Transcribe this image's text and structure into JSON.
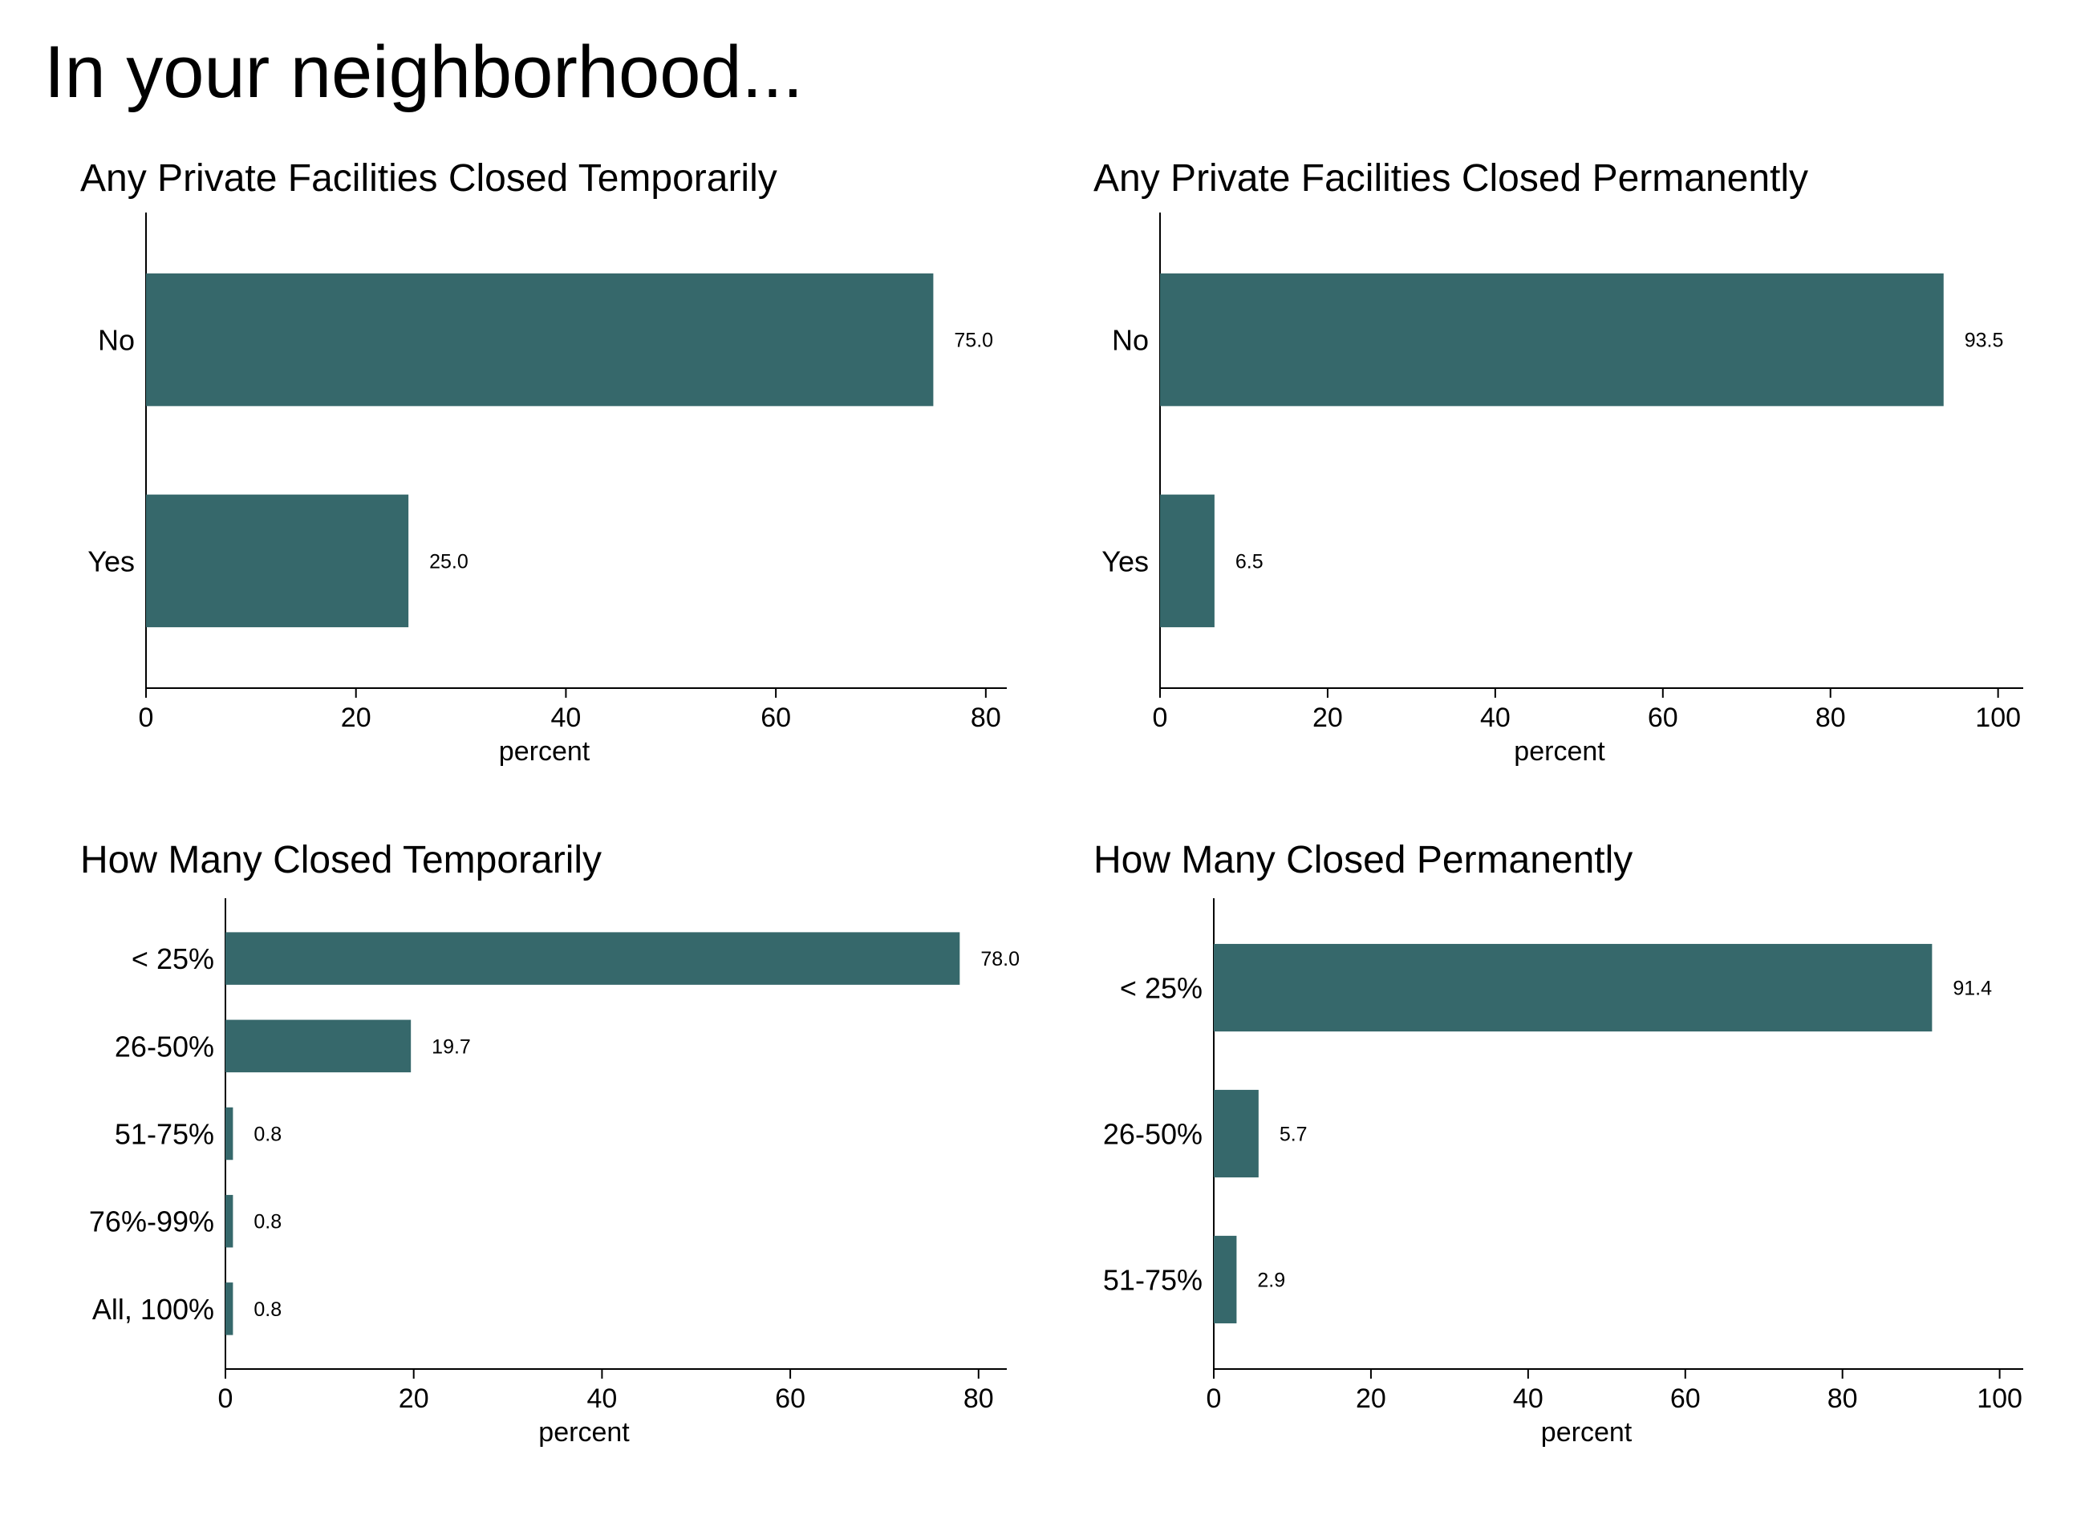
{
  "title": "In your neighborhood...",
  "colors": {
    "bar": "#36686b",
    "axis": "#000000"
  },
  "chart_data": [
    {
      "type": "bar",
      "orientation": "horizontal",
      "title": "Any Private Facilities Closed Temporarily",
      "categories": [
        "No",
        "Yes"
      ],
      "values": [
        75.0,
        25.0
      ],
      "data_labels": [
        "75.0",
        "25.0"
      ],
      "xlabel": "percent",
      "xlim": [
        0,
        82
      ],
      "xticks": [
        0,
        20,
        40,
        60,
        80
      ],
      "grid": false
    },
    {
      "type": "bar",
      "orientation": "horizontal",
      "title": "Any Private Facilities Closed Permanently",
      "categories": [
        "No",
        "Yes"
      ],
      "values": [
        93.5,
        6.5
      ],
      "data_labels": [
        "93.5",
        "6.5"
      ],
      "xlabel": "percent",
      "xlim": [
        0,
        103
      ],
      "xticks": [
        0,
        20,
        40,
        60,
        80,
        100
      ],
      "grid": false
    },
    {
      "type": "bar",
      "orientation": "horizontal",
      "title": "How Many Closed Temporarily",
      "categories": [
        "< 25%",
        "26-50%",
        "51-75%",
        "76%-99%",
        "All, 100%"
      ],
      "values": [
        78.0,
        19.7,
        0.8,
        0.8,
        0.8
      ],
      "data_labels": [
        "78.0",
        "19.7",
        "0.8",
        "0.8",
        "0.8"
      ],
      "xlabel": "percent",
      "xlim": [
        0,
        83
      ],
      "xticks": [
        0,
        20,
        40,
        60,
        80
      ],
      "grid": false
    },
    {
      "type": "bar",
      "orientation": "horizontal",
      "title": "How Many Closed Permanently",
      "categories": [
        "< 25%",
        "26-50%",
        "51-75%"
      ],
      "values": [
        91.4,
        5.7,
        2.9
      ],
      "data_labels": [
        "91.4",
        "5.7",
        "2.9"
      ],
      "xlabel": "percent",
      "xlim": [
        0,
        103
      ],
      "xticks": [
        0,
        20,
        40,
        60,
        80,
        100
      ],
      "grid": false
    }
  ]
}
